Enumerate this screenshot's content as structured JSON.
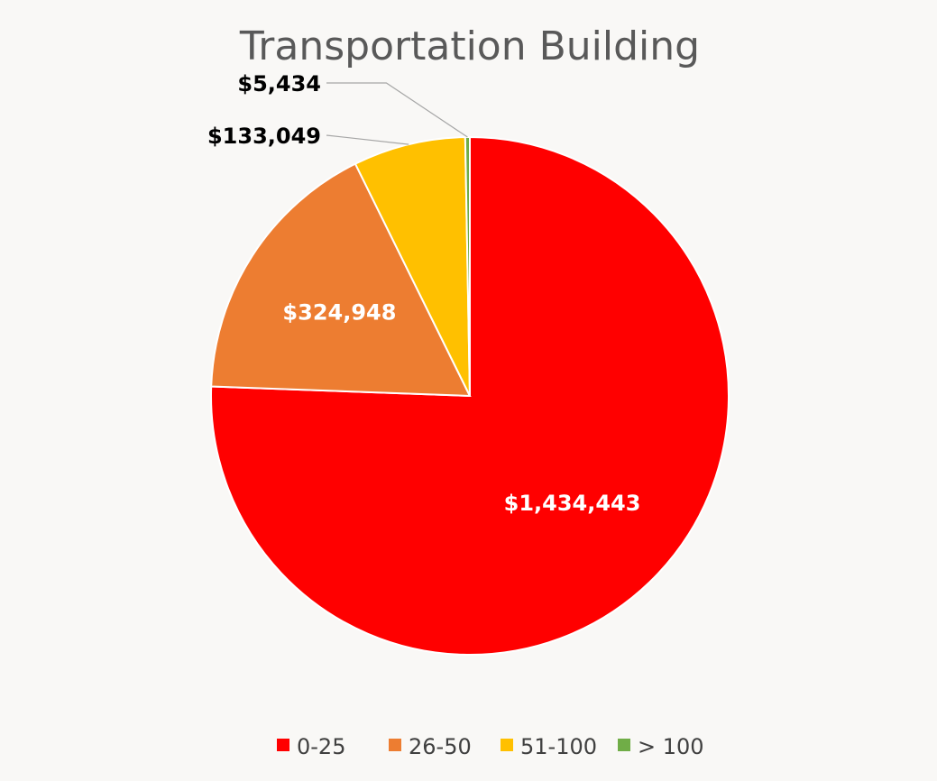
{
  "chart_data": {
    "type": "pie",
    "title": "Transportation Building",
    "categories": [
      "0-25",
      "26-50",
      "51-100",
      "> 100"
    ],
    "values": [
      1434443,
      324948,
      133049,
      5434
    ],
    "data_labels": [
      "$1,434,443",
      "$324,948",
      "$133,049",
      "$5,434"
    ],
    "colors": [
      "#ff0000",
      "#ed7d31",
      "#ffc000",
      "#70ad47"
    ],
    "start_angle": "12 o'clock",
    "direction": "clockwise",
    "legend_position": "bottom"
  }
}
